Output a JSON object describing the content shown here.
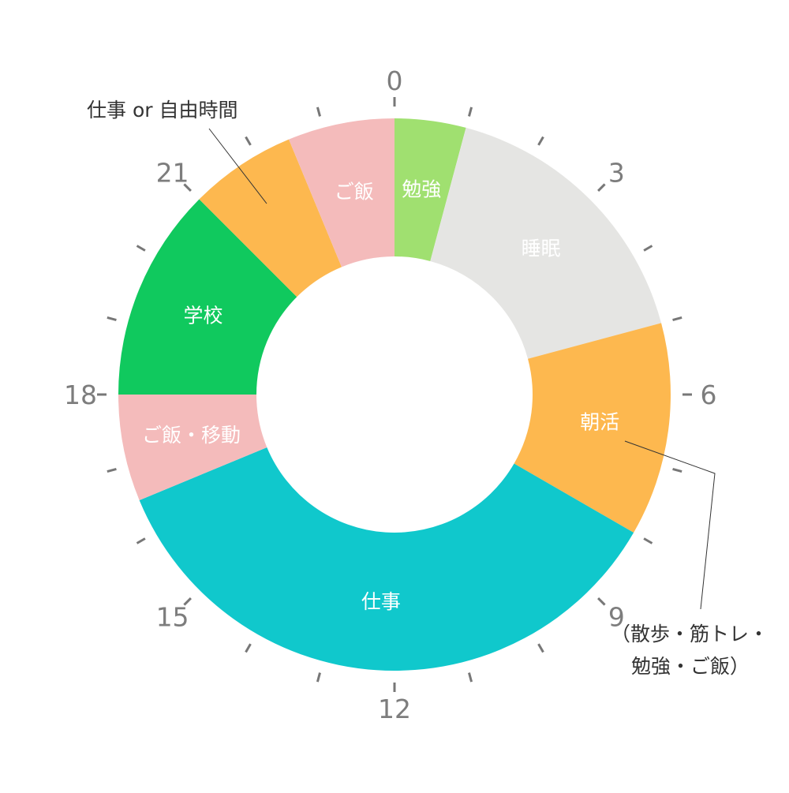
{
  "chart_data": {
    "type": "pie",
    "style": "donut",
    "unit": "hours",
    "clock_hours": 24,
    "hour_labels": [
      {
        "hour": 0,
        "text": "0"
      },
      {
        "hour": 3,
        "text": "3"
      },
      {
        "hour": 6,
        "text": "6"
      },
      {
        "hour": 9,
        "text": "9"
      },
      {
        "hour": 12,
        "text": "12"
      },
      {
        "hour": 15,
        "text": "15"
      },
      {
        "hour": 18,
        "text": "18"
      },
      {
        "hour": 21,
        "text": "21"
      }
    ],
    "segments": [
      {
        "label": "勉強",
        "start": 0,
        "end": 1,
        "color": "#a0e070"
      },
      {
        "label": "睡眠",
        "start": 1,
        "end": 5,
        "color": "#e5e5e3"
      },
      {
        "label": "朝活",
        "start": 5,
        "end": 8,
        "color": "#fdb84f"
      },
      {
        "label": "仕事",
        "start": 8,
        "end": 16.5,
        "color": "#10c8cc"
      },
      {
        "label": "ご飯・移動",
        "start": 16.5,
        "end": 18,
        "color": "#f4bbbb"
      },
      {
        "label": "学校",
        "start": 18,
        "end": 21,
        "color": "#10c95e"
      },
      {
        "label": "",
        "start": 21,
        "end": 22.5,
        "color": "#fdb84f"
      },
      {
        "label": "ご飯",
        "start": 22.5,
        "end": 24,
        "color": "#f4bbbb"
      }
    ],
    "annotations": [
      {
        "text": "仕事 or 自由時間",
        "segment": 6
      },
      {
        "lines": [
          "（散歩・筋トレ・",
          "勉強・ご飯）"
        ],
        "segment": 2
      }
    ]
  }
}
